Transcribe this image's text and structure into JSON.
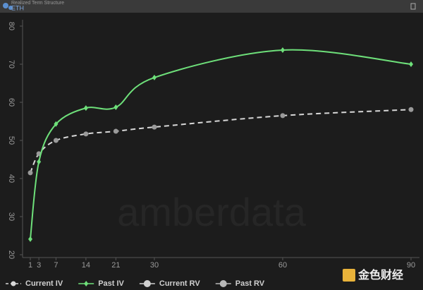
{
  "header": {
    "title": "Realized Term Structure",
    "asset": "ETH"
  },
  "watermark": "amberdata",
  "badge": "金色财经",
  "chart_data": {
    "type": "line",
    "x": [
      1,
      3,
      7,
      14,
      21,
      30,
      60,
      90
    ],
    "xlim": [
      1,
      90
    ],
    "xticks": [
      1,
      3,
      7,
      14,
      21,
      30,
      60,
      90
    ],
    "ylim": [
      20,
      80
    ],
    "yticks": [
      20,
      30,
      40,
      50,
      60,
      70,
      80
    ],
    "series": [
      {
        "name": "Current IV",
        "color": "#d8d8d8",
        "marker": "circle",
        "dashed": true,
        "values": [
          41.5,
          46.5,
          50,
          51.7,
          52.4,
          53.5,
          56.5,
          58.1
        ]
      },
      {
        "name": "Past IV",
        "color": "#6ee07a",
        "marker": "diamond",
        "dashed": false,
        "values": [
          24.1,
          44.4,
          54.3,
          58.5,
          58.7,
          66.5,
          73.7,
          70.0
        ]
      },
      {
        "name": "Current RV",
        "color": "#cfcfcf",
        "marker": "circle",
        "dashed": false,
        "values": [
          null,
          null,
          null,
          null,
          null,
          null,
          null,
          null
        ]
      },
      {
        "name": "Past RV",
        "color": "#b9b9b9",
        "marker": "circle",
        "dashed": false,
        "values": [
          null,
          null,
          null,
          null,
          null,
          null,
          null,
          null
        ]
      }
    ]
  }
}
